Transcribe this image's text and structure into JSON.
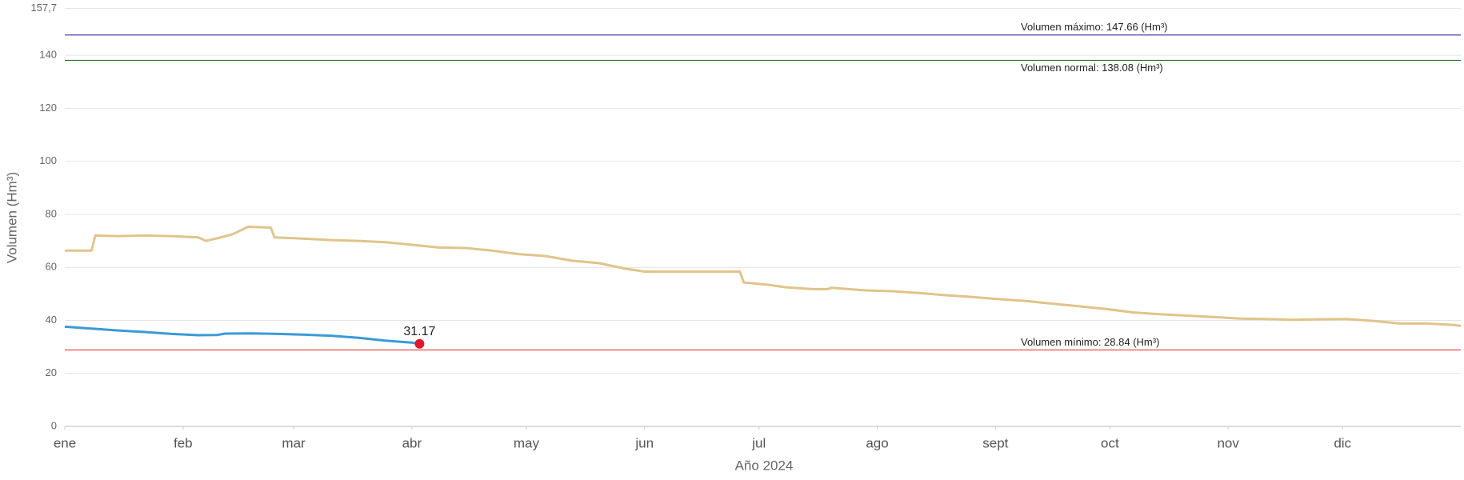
{
  "chart_data": {
    "type": "line",
    "x_label": "Año 2024",
    "y_label": "Volumen (Hm³)",
    "xlim": [
      0,
      366
    ],
    "xticks": [
      {
        "value": 0,
        "label": "ene"
      },
      {
        "value": 31,
        "label": "feb"
      },
      {
        "value": 60,
        "label": "mar"
      },
      {
        "value": 91,
        "label": "abr"
      },
      {
        "value": 121,
        "label": "may"
      },
      {
        "value": 152,
        "label": "jun"
      },
      {
        "value": 182,
        "label": "jul"
      },
      {
        "value": 213,
        "label": "ago"
      },
      {
        "value": 244,
        "label": "sept"
      },
      {
        "value": 274,
        "label": "oct"
      },
      {
        "value": 305,
        "label": "nov"
      },
      {
        "value": 335,
        "label": "dic"
      }
    ],
    "ylim": [
      0,
      157.7
    ],
    "yticks": [
      0,
      20,
      40,
      60,
      80,
      100,
      120,
      140,
      {
        "value": 157.7,
        "label": "157,7"
      }
    ],
    "grid": true,
    "series": [
      {
        "color": "#e0c48a",
        "x": [
          0,
          7,
          8,
          14,
          21,
          28,
          35,
          37,
          40,
          44,
          48,
          54,
          55,
          63,
          70,
          77,
          84,
          91,
          98,
          105,
          112,
          119,
          126,
          133,
          140,
          147,
          152,
          177,
          178,
          184,
          189,
          196,
          200,
          201,
          210,
          217,
          224,
          231,
          238,
          245,
          252,
          259,
          266,
          273,
          280,
          287,
          294,
          301,
          308,
          315,
          322,
          329,
          336,
          343,
          350,
          357,
          364,
          366
        ],
        "values": [
          66.3,
          66.3,
          72,
          71.8,
          72,
          71.8,
          71.3,
          70,
          71,
          72.5,
          75.3,
          75,
          71.3,
          70.8,
          70.3,
          70,
          69.5,
          68.5,
          67.5,
          67.3,
          66.3,
          65,
          64.3,
          62.5,
          61.6,
          59.5,
          58.4,
          58.4,
          54.3,
          53.5,
          52.5,
          51.8,
          51.8,
          52.3,
          51.3,
          51,
          50.3,
          49.5,
          48.8,
          48,
          47.3,
          46.3,
          45.3,
          44.3,
          43,
          42.3,
          41.8,
          41.3,
          40.7,
          40.5,
          40.2,
          40.4,
          40.5,
          39.8,
          38.8,
          38.8,
          38.3,
          37.9
        ]
      },
      {
        "color": "#3b9ad9",
        "x": [
          0,
          7,
          14,
          21,
          28,
          35,
          40,
          42,
          49,
          56,
          63,
          70,
          77,
          84,
          91,
          93
        ],
        "values": [
          37.6,
          36.9,
          36.2,
          35.6,
          34.9,
          34.4,
          34.5,
          35,
          35.1,
          34.9,
          34.6,
          34.2,
          33.4,
          32.4,
          31.6,
          31.17
        ],
        "marker_color": "#e0192a"
      }
    ],
    "reference_lines": [
      {
        "label": "Volumen máximo: 147.66 (Hm³)",
        "value": 147.66,
        "color": "#3f3f9f",
        "label_side": "above"
      },
      {
        "label": "Volumen normal: 138.08 (Hm³)",
        "value": 138.08,
        "color": "#2e7d32",
        "label_side": "below"
      },
      {
        "label": "Volumen mínimo: 28.84 (Hm³)",
        "value": 28.84,
        "color": "#e53935",
        "label_side": "above"
      }
    ]
  }
}
